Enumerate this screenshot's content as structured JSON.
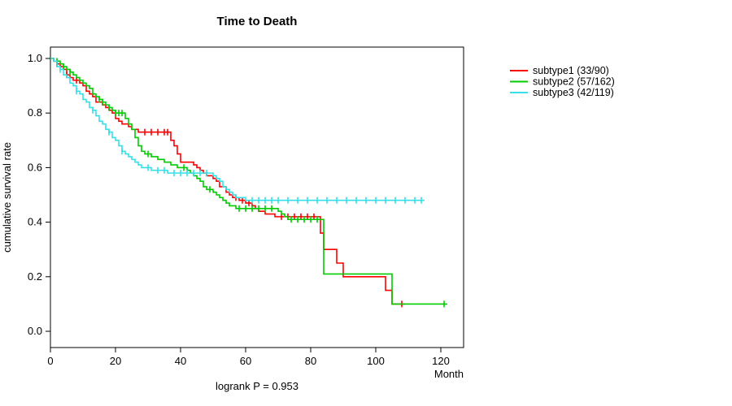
{
  "chart_data": {
    "type": "line",
    "subtype": "kaplan-meier-step-survival",
    "title": "Time to Death",
    "xlabel": "Month",
    "ylabel": "cumulative survival rate",
    "footnote": "logrank P = 0.953",
    "logrank_p": 0.953,
    "xlim": [
      0,
      127
    ],
    "ylim": [
      0.0,
      1.0
    ],
    "x_ticks": [
      0,
      20,
      40,
      60,
      80,
      100,
      120
    ],
    "y_ticks": [
      0.0,
      0.2,
      0.4,
      0.6,
      0.8,
      1.0
    ],
    "y_tick_labels": [
      "0.0",
      "0.2",
      "0.4",
      "0.6",
      "0.8",
      "1.0"
    ],
    "grid": false,
    "legend_position": "top-right-outside",
    "series": [
      {
        "name": "subtype1",
        "label": "subtype1 (33/90)",
        "deaths": 33,
        "n": 90,
        "color": "#FF0000",
        "end": 109,
        "steps": [
          [
            0,
            1.0
          ],
          [
            1,
            0.99
          ],
          [
            2,
            0.98
          ],
          [
            3,
            0.97
          ],
          [
            4,
            0.96
          ],
          [
            5,
            0.94
          ],
          [
            6,
            0.93
          ],
          [
            7,
            0.92
          ],
          [
            9,
            0.91
          ],
          [
            10,
            0.9
          ],
          [
            11,
            0.88
          ],
          [
            12,
            0.87
          ],
          [
            13,
            0.86
          ],
          [
            14,
            0.84
          ],
          [
            16,
            0.83
          ],
          [
            17,
            0.82
          ],
          [
            18,
            0.81
          ],
          [
            19,
            0.8
          ],
          [
            20,
            0.78
          ],
          [
            21,
            0.77
          ],
          [
            22,
            0.76
          ],
          [
            24,
            0.75
          ],
          [
            25,
            0.74
          ],
          [
            27,
            0.73
          ],
          [
            37,
            0.7
          ],
          [
            38,
            0.68
          ],
          [
            39,
            0.65
          ],
          [
            40,
            0.62
          ],
          [
            44,
            0.61
          ],
          [
            45,
            0.6
          ],
          [
            46,
            0.59
          ],
          [
            47,
            0.58
          ],
          [
            48,
            0.57
          ],
          [
            50,
            0.56
          ],
          [
            51,
            0.55
          ],
          [
            52,
            0.53
          ],
          [
            54,
            0.51
          ],
          [
            55,
            0.5
          ],
          [
            56,
            0.49
          ],
          [
            58,
            0.48
          ],
          [
            60,
            0.47
          ],
          [
            62,
            0.46
          ],
          [
            63,
            0.45
          ],
          [
            64,
            0.44
          ],
          [
            66,
            0.43
          ],
          [
            69,
            0.42
          ],
          [
            83,
            0.36
          ],
          [
            84,
            0.3
          ],
          [
            88,
            0.25
          ],
          [
            90,
            0.2
          ],
          [
            103,
            0.15
          ],
          [
            105,
            0.1
          ]
        ],
        "censors": [
          2,
          5,
          8,
          29,
          31,
          33,
          35,
          36,
          57,
          59,
          61,
          71,
          73,
          75,
          77,
          79,
          81,
          108
        ]
      },
      {
        "name": "subtype2",
        "label": "subtype2 (57/162)",
        "deaths": 57,
        "n": 162,
        "color": "#00CC00",
        "end": 122,
        "steps": [
          [
            0,
            1.0
          ],
          [
            1,
            0.99
          ],
          [
            3,
            0.98
          ],
          [
            4,
            0.97
          ],
          [
            5,
            0.96
          ],
          [
            6,
            0.95
          ],
          [
            7,
            0.94
          ],
          [
            8,
            0.93
          ],
          [
            9,
            0.92
          ],
          [
            10,
            0.91
          ],
          [
            11,
            0.9
          ],
          [
            12,
            0.89
          ],
          [
            13,
            0.87
          ],
          [
            14,
            0.86
          ],
          [
            15,
            0.85
          ],
          [
            16,
            0.84
          ],
          [
            17,
            0.83
          ],
          [
            18,
            0.82
          ],
          [
            19,
            0.81
          ],
          [
            20,
            0.8
          ],
          [
            23,
            0.78
          ],
          [
            24,
            0.76
          ],
          [
            25,
            0.74
          ],
          [
            26,
            0.71
          ],
          [
            27,
            0.68
          ],
          [
            28,
            0.66
          ],
          [
            29,
            0.65
          ],
          [
            31,
            0.64
          ],
          [
            33,
            0.63
          ],
          [
            35,
            0.62
          ],
          [
            37,
            0.61
          ],
          [
            39,
            0.6
          ],
          [
            42,
            0.59
          ],
          [
            43,
            0.58
          ],
          [
            44,
            0.57
          ],
          [
            45,
            0.56
          ],
          [
            46,
            0.55
          ],
          [
            47,
            0.53
          ],
          [
            48,
            0.52
          ],
          [
            50,
            0.51
          ],
          [
            51,
            0.5
          ],
          [
            52,
            0.49
          ],
          [
            53,
            0.48
          ],
          [
            54,
            0.47
          ],
          [
            55,
            0.46
          ],
          [
            57,
            0.45
          ],
          [
            70,
            0.44
          ],
          [
            71,
            0.43
          ],
          [
            72,
            0.42
          ],
          [
            73,
            0.41
          ],
          [
            84,
            0.21
          ],
          [
            105,
            0.1
          ]
        ],
        "censors": [
          2,
          4,
          6,
          15,
          16,
          18,
          20,
          21,
          22,
          30,
          41,
          49,
          58,
          60,
          62,
          64,
          66,
          68,
          74,
          76,
          78,
          80,
          82,
          121
        ]
      },
      {
        "name": "subtype3",
        "label": "subtype3 (42/119)",
        "deaths": 42,
        "n": 119,
        "color": "#35E0E8",
        "end": 115,
        "steps": [
          [
            0,
            1.0
          ],
          [
            1,
            0.99
          ],
          [
            2,
            0.97
          ],
          [
            3,
            0.96
          ],
          [
            4,
            0.94
          ],
          [
            5,
            0.93
          ],
          [
            6,
            0.91
          ],
          [
            7,
            0.9
          ],
          [
            8,
            0.88
          ],
          [
            9,
            0.87
          ],
          [
            10,
            0.85
          ],
          [
            11,
            0.84
          ],
          [
            12,
            0.82
          ],
          [
            13,
            0.81
          ],
          [
            14,
            0.79
          ],
          [
            15,
            0.77
          ],
          [
            16,
            0.76
          ],
          [
            17,
            0.74
          ],
          [
            18,
            0.73
          ],
          [
            19,
            0.71
          ],
          [
            20,
            0.7
          ],
          [
            21,
            0.68
          ],
          [
            22,
            0.66
          ],
          [
            23,
            0.65
          ],
          [
            24,
            0.64
          ],
          [
            25,
            0.63
          ],
          [
            26,
            0.62
          ],
          [
            27,
            0.61
          ],
          [
            28,
            0.6
          ],
          [
            31,
            0.59
          ],
          [
            36,
            0.58
          ],
          [
            50,
            0.57
          ],
          [
            51,
            0.56
          ],
          [
            52,
            0.55
          ],
          [
            53,
            0.53
          ],
          [
            54,
            0.52
          ],
          [
            55,
            0.51
          ],
          [
            56,
            0.5
          ],
          [
            57,
            0.49
          ],
          [
            60,
            0.48
          ]
        ],
        "censors": [
          3,
          8,
          13,
          18,
          22,
          30,
          33,
          35,
          38,
          40,
          42,
          44,
          46,
          48,
          62,
          64,
          66,
          68,
          70,
          73,
          76,
          79,
          82,
          85,
          88,
          91,
          94,
          97,
          100,
          103,
          106,
          109,
          112,
          114
        ]
      }
    ]
  }
}
